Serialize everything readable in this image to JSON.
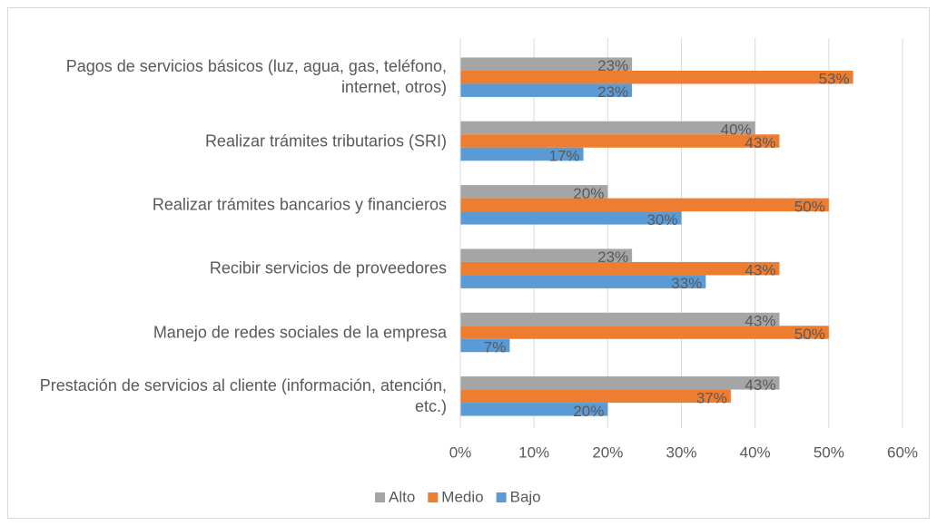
{
  "chart_data": {
    "type": "bar",
    "orientation": "horizontal",
    "categories": [
      "Pagos de servicios básicos (luz, agua, gas, teléfono, internet, otros)",
      "Realizar trámites tributarios (SRI)",
      "Realizar trámites bancarios y financieros",
      "Recibir servicios de proveedores",
      "Manejo de redes sociales de la empresa",
      "Prestación de servicios al cliente (información, atención, etc.)"
    ],
    "series": [
      {
        "name": "Alto",
        "color": "#a5a5a5",
        "values": [
          23.3,
          40,
          20,
          23.3,
          43.3,
          43.3
        ],
        "value_labels": [
          "23%",
          "40%",
          "20%",
          "23%",
          "43%",
          "43%"
        ]
      },
      {
        "name": "Medio",
        "color": "#ed7d31",
        "values": [
          53.3,
          43.3,
          50,
          43.3,
          50,
          36.7
        ],
        "value_labels": [
          "53%",
          "43%",
          "50%",
          "43%",
          "50%",
          "37%"
        ]
      },
      {
        "name": "Bajo",
        "color": "#5b9bd5",
        "values": [
          23.3,
          16.7,
          30,
          33.3,
          6.7,
          20
        ],
        "value_labels": [
          "23%",
          "17%",
          "30%",
          "33%",
          "7%",
          "20%"
        ]
      }
    ],
    "xlim": [
      0,
      60
    ],
    "xticks": [
      {
        "value": 0,
        "label": "0%"
      },
      {
        "value": 10,
        "label": "10%"
      },
      {
        "value": 20,
        "label": "20%"
      },
      {
        "value": 30,
        "label": "30%"
      },
      {
        "value": 40,
        "label": "40%"
      },
      {
        "value": 50,
        "label": "50%"
      },
      {
        "value": 60,
        "label": "60%"
      }
    ],
    "grid": true,
    "legend": "bottom"
  }
}
